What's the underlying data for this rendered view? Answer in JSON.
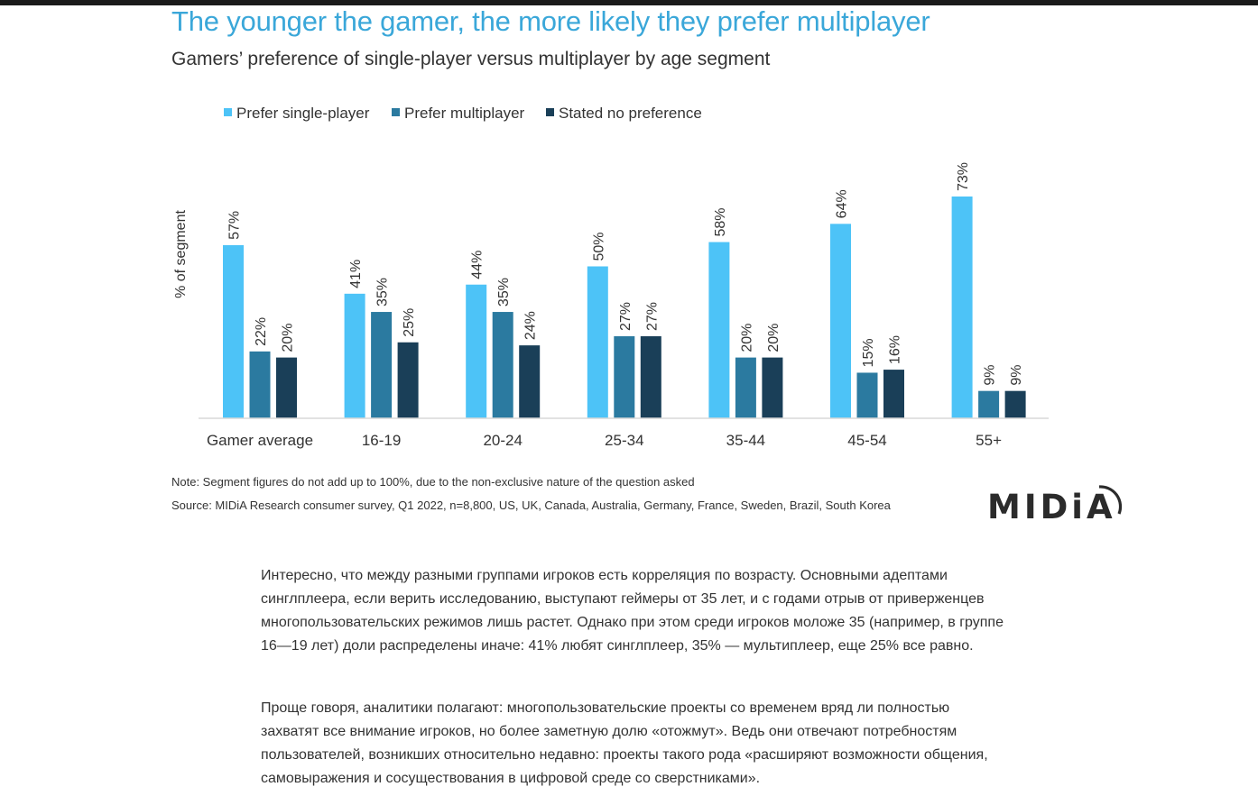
{
  "chart_data": {
    "type": "bar",
    "title": "The younger the gamer, the more likely they prefer multiplayer",
    "subtitle": "Gamers’ preference of single-player versus multiplayer by age segment",
    "ylabel": "% of segment",
    "xlabel": "",
    "ylim": [
      0,
      80
    ],
    "grid": false,
    "legend_position": "top-left",
    "categories": [
      "Gamer average",
      "16-19",
      "20-24",
      "25-34",
      "35-44",
      "45-54",
      "55+"
    ],
    "series": [
      {
        "name": "Prefer single-player",
        "values": [
          57,
          41,
          44,
          50,
          58,
          64,
          73
        ],
        "labels": [
          "57%",
          "41%",
          "44%",
          "50%",
          "58%",
          "64%",
          "73%"
        ],
        "color": "#4dc3f7"
      },
      {
        "name": "Prefer multiplayer",
        "values": [
          22,
          35,
          35,
          27,
          20,
          15,
          9
        ],
        "labels": [
          "22%",
          "35%",
          "35%",
          "27%",
          "20%",
          "15%",
          "9%"
        ],
        "color": "#2b7aa0"
      },
      {
        "name": "Stated no preference",
        "values": [
          20,
          25,
          24,
          27,
          20,
          16,
          9
        ],
        "labels": [
          "20%",
          "25%",
          "24%",
          "27%",
          "20%",
          "16%",
          "9%"
        ],
        "color": "#1a3f58"
      }
    ]
  },
  "notes": {
    "note": "Note: Segment figures do not add up to 100%, due to the non-exclusive nature of the question asked",
    "source": "Source: MIDiA Research consumer survey, Q1 2022, n=8,800, US, UK, Canada, Australia, Germany, France, Sweden, Brazil, South Korea"
  },
  "logo": {
    "text": "MIDiA"
  },
  "article": {
    "p1": "Интересно, что между разными группами игроков есть корреляция по возрасту. Основными адептами синглплеера, если верить исследованию, выступают геймеры от 35 лет, и с годами отрыв от приверженцев многопользовательских режимов лишь растет. Однако при этом среди игроков моложе 35 (например, в группе 16—19 лет) доли распределены иначе: 41% любят синглплеер, 35% — мультиплеер, еще 25% все равно.",
    "p2": "Проще говоря, аналитики полагают: многопользовательские проекты со временем вряд ли полностью захватят все внимание игроков, но более заметную долю «отожмут». Ведь они отвечают потребностям пользователей, возникших относительно недавно: проекты такого рода «расширяют возможности общения, самовыражения и сосуществования в цифровой среде со сверстниками»."
  }
}
